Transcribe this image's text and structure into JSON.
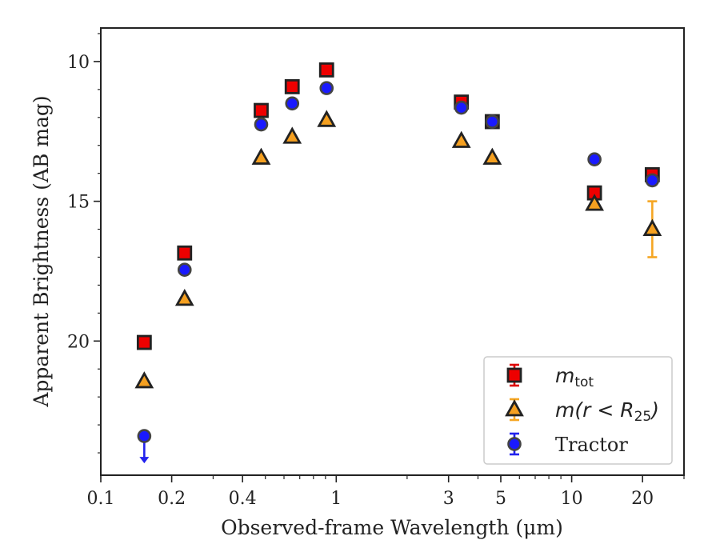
{
  "chart_data": {
    "type": "scatter",
    "xlabel": "Observed-frame Wavelength (μm)",
    "ylabel": "Apparent Brightness (AB mag)",
    "xscale": "log",
    "xlim": [
      0.1,
      30
    ],
    "ylim": [
      24.8,
      8.8
    ],
    "y_inverted": true,
    "x_ticks": [
      {
        "value": 0.1,
        "label": "0.1"
      },
      {
        "value": 0.2,
        "label": "0.2"
      },
      {
        "value": 0.4,
        "label": "0.4"
      },
      {
        "value": 1,
        "label": "1"
      },
      {
        "value": 3,
        "label": "3"
      },
      {
        "value": 5,
        "label": "5"
      },
      {
        "value": 10,
        "label": "10"
      },
      {
        "value": 20,
        "label": "20"
      }
    ],
    "y_ticks": [
      {
        "value": 10,
        "label": "10"
      },
      {
        "value": 15,
        "label": "15"
      },
      {
        "value": 20,
        "label": "20"
      }
    ],
    "legend_position": "lower-right",
    "series": [
      {
        "key": "m_tot",
        "legend_main": "m",
        "legend_sub": "tot",
        "marker": "square",
        "face_color": "#ee0000",
        "error_color": "#dd0000",
        "points": [
          {
            "x": 0.153,
            "y": 20.05
          },
          {
            "x": 0.227,
            "y": 16.85
          },
          {
            "x": 0.48,
            "y": 11.75
          },
          {
            "x": 0.65,
            "y": 10.9
          },
          {
            "x": 0.91,
            "y": 10.3
          },
          {
            "x": 3.4,
            "y": 11.45
          },
          {
            "x": 4.6,
            "y": 12.15
          },
          {
            "x": 12.5,
            "y": 14.7
          },
          {
            "x": 22.0,
            "y": 14.05
          }
        ]
      },
      {
        "key": "m_r25",
        "legend_main": "m(r < R",
        "legend_sub": "25",
        "legend_tail": ")",
        "marker": "triangle",
        "face_color": "#f5a020",
        "error_color": "#f5a623",
        "points": [
          {
            "x": 0.153,
            "y": 21.45
          },
          {
            "x": 0.227,
            "y": 18.5
          },
          {
            "x": 0.48,
            "y": 13.45
          },
          {
            "x": 0.65,
            "y": 12.7
          },
          {
            "x": 0.91,
            "y": 12.1
          },
          {
            "x": 3.4,
            "y": 12.85
          },
          {
            "x": 4.6,
            "y": 13.45
          },
          {
            "x": 12.5,
            "y": 15.1
          },
          {
            "x": 22.0,
            "y": 16.0,
            "yerr": 1.0
          }
        ]
      },
      {
        "key": "tractor",
        "legend_main": "Tractor",
        "marker": "circle",
        "face_color": "#1a1aff",
        "error_color": "#2222ee",
        "points": [
          {
            "x": 0.153,
            "y": 23.4,
            "upper_limit": true
          },
          {
            "x": 0.227,
            "y": 17.45
          },
          {
            "x": 0.48,
            "y": 12.25
          },
          {
            "x": 0.65,
            "y": 11.5
          },
          {
            "x": 0.91,
            "y": 10.95
          },
          {
            "x": 3.4,
            "y": 11.65
          },
          {
            "x": 4.6,
            "y": 12.15
          },
          {
            "x": 12.5,
            "y": 13.5
          },
          {
            "x": 22.0,
            "y": 14.25
          }
        ]
      }
    ]
  }
}
